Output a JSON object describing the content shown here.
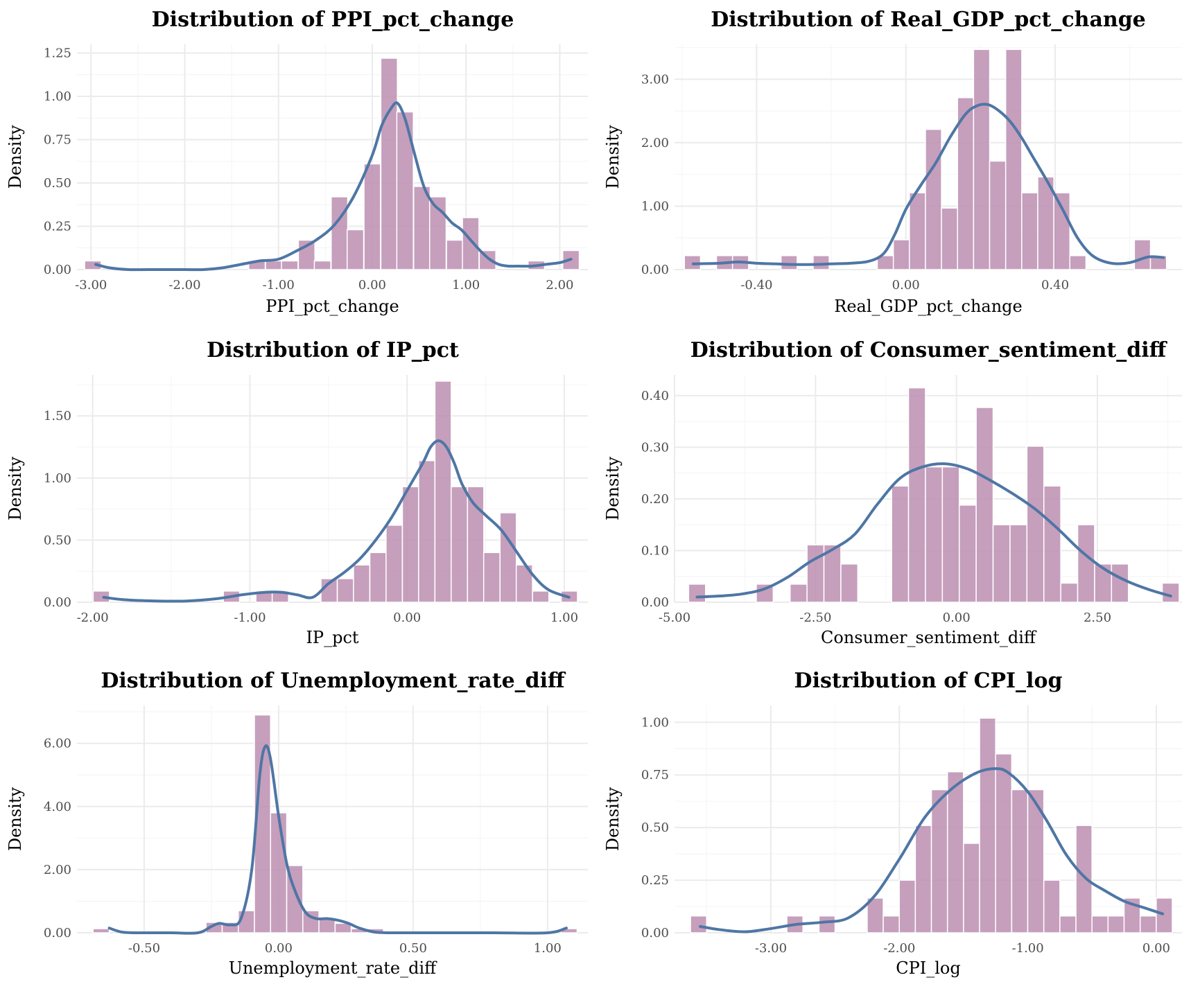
{
  "chart_data": [
    {
      "type": "bar",
      "title": "Distribution of PPI_pct_change",
      "xlabel": "PPI_pct_change",
      "ylabel": "Density",
      "xlim": [
        -3.15,
        2.3
      ],
      "ylim": [
        0,
        1.3
      ],
      "xticks": [
        -3,
        -2,
        -1,
        0,
        1,
        2
      ],
      "xtick_labels": [
        "-3.00",
        "-2.00",
        "-1.00",
        "0.00",
        "1.00",
        "2.00"
      ],
      "yticks": [
        0,
        0.25,
        0.5,
        0.75,
        1.0,
        1.25
      ],
      "ytick_labels": [
        "0.00",
        "0.25",
        "0.50",
        "0.75",
        "1.00",
        "1.25"
      ],
      "bin_width": 0.176,
      "bin_centers": [
        -2.98,
        -1.23,
        -1.05,
        -0.88,
        -0.7,
        -0.53,
        -0.35,
        -0.18,
        0.0,
        0.18,
        0.35,
        0.53,
        0.7,
        0.88,
        1.05,
        1.23,
        1.75,
        2.12
      ],
      "densities": [
        0.05,
        0.05,
        0.05,
        0.05,
        0.17,
        0.05,
        0.42,
        0.23,
        0.61,
        1.22,
        0.91,
        0.48,
        0.42,
        0.17,
        0.3,
        0.11,
        0.05,
        0.11
      ],
      "kde": {
        "x": [
          -2.95,
          -2.8,
          -2.6,
          -2.4,
          -2.2,
          -2.0,
          -1.8,
          -1.6,
          -1.4,
          -1.2,
          -1.0,
          -0.8,
          -0.6,
          -0.4,
          -0.2,
          0.0,
          0.1,
          0.2,
          0.27,
          0.35,
          0.45,
          0.55,
          0.65,
          0.75,
          0.85,
          0.95,
          1.05,
          1.15,
          1.25,
          1.35,
          1.45,
          1.55,
          1.7,
          1.85,
          2.0,
          2.12
        ],
        "y": [
          0.03,
          0.01,
          0.0,
          0.0,
          0.0,
          0.0,
          0.0,
          0.01,
          0.03,
          0.05,
          0.06,
          0.11,
          0.17,
          0.26,
          0.42,
          0.66,
          0.83,
          0.93,
          0.96,
          0.87,
          0.67,
          0.48,
          0.38,
          0.33,
          0.27,
          0.23,
          0.17,
          0.11,
          0.06,
          0.03,
          0.02,
          0.02,
          0.02,
          0.03,
          0.04,
          0.06
        ]
      }
    },
    {
      "type": "bar",
      "title": "Distribution of Real_GDP_pct_change",
      "xlabel": "Real_GDP_pct_change",
      "ylabel": "Density",
      "xlim": [
        -0.62,
        0.74
      ],
      "ylim": [
        0,
        3.55
      ],
      "xticks": [
        -0.4,
        0.0,
        0.4
      ],
      "xtick_labels": [
        "-0.40",
        "0.00",
        "0.40"
      ],
      "yticks": [
        0,
        1,
        2,
        3
      ],
      "ytick_labels": [
        "0.00",
        "1.00",
        "2.00",
        "3.00"
      ],
      "bin_width": 0.0431,
      "bin_centers": [
        -0.572,
        -0.486,
        -0.443,
        -0.313,
        -0.227,
        -0.055,
        -0.012,
        0.031,
        0.074,
        0.117,
        0.16,
        0.203,
        0.246,
        0.289,
        0.332,
        0.375,
        0.418,
        0.461,
        0.634,
        0.677
      ],
      "densities": [
        0.22,
        0.22,
        0.22,
        0.22,
        0.22,
        0.22,
        0.47,
        1.21,
        2.21,
        0.97,
        2.71,
        3.47,
        1.71,
        3.47,
        1.21,
        1.46,
        1.21,
        0.22,
        0.47,
        0.22
      ],
      "kde": {
        "x": [
          -0.57,
          -0.5,
          -0.45,
          -0.4,
          -0.35,
          -0.3,
          -0.25,
          -0.2,
          -0.15,
          -0.1,
          -0.06,
          -0.03,
          0.0,
          0.04,
          0.08,
          0.12,
          0.16,
          0.19,
          0.22,
          0.25,
          0.28,
          0.31,
          0.34,
          0.38,
          0.42,
          0.46,
          0.5,
          0.55,
          0.6,
          0.65,
          0.69
        ],
        "y": [
          0.09,
          0.1,
          0.12,
          0.1,
          0.09,
          0.08,
          0.08,
          0.09,
          0.1,
          0.13,
          0.25,
          0.55,
          0.95,
          1.33,
          1.68,
          2.1,
          2.45,
          2.58,
          2.6,
          2.5,
          2.33,
          2.08,
          1.78,
          1.38,
          0.95,
          0.5,
          0.22,
          0.1,
          0.11,
          0.2,
          0.19
        ]
      }
    },
    {
      "type": "bar",
      "title": "Distribution of IP_pct",
      "xlabel": "IP_pct",
      "ylabel": "Density",
      "xlim": [
        -2.1,
        1.15
      ],
      "ylim": [
        0,
        1.83
      ],
      "xticks": [
        -2,
        -1,
        0,
        1
      ],
      "xtick_labels": [
        "-2.00",
        "-1.00",
        "0.00",
        "1.00"
      ],
      "yticks": [
        0,
        0.5,
        1.0,
        1.5
      ],
      "ytick_labels": [
        "0.00",
        "0.50",
        "1.00",
        "1.50"
      ],
      "bin_width": 0.1035,
      "bin_centers": [
        -1.945,
        -1.117,
        -0.91,
        -0.806,
        -0.496,
        -0.392,
        -0.289,
        -0.185,
        -0.082,
        0.022,
        0.125,
        0.229,
        0.332,
        0.436,
        0.539,
        0.643,
        0.746,
        0.85,
        1.032
      ],
      "densities": [
        0.09,
        0.09,
        0.09,
        0.09,
        0.19,
        0.19,
        0.3,
        0.4,
        0.62,
        0.93,
        1.14,
        1.78,
        0.93,
        0.93,
        0.4,
        0.72,
        0.3,
        0.09,
        0.09
      ],
      "kde": {
        "x": [
          -1.93,
          -1.8,
          -1.6,
          -1.4,
          -1.2,
          -1.05,
          -0.9,
          -0.8,
          -0.7,
          -0.6,
          -0.5,
          -0.4,
          -0.3,
          -0.2,
          -0.1,
          0.0,
          0.1,
          0.15,
          0.2,
          0.25,
          0.3,
          0.35,
          0.42,
          0.5,
          0.6,
          0.7,
          0.8,
          0.9,
          1.03
        ],
        "y": [
          0.04,
          0.02,
          0.01,
          0.01,
          0.03,
          0.06,
          0.08,
          0.08,
          0.06,
          0.04,
          0.15,
          0.24,
          0.35,
          0.5,
          0.68,
          0.9,
          1.12,
          1.25,
          1.3,
          1.25,
          1.12,
          0.95,
          0.8,
          0.7,
          0.58,
          0.4,
          0.22,
          0.1,
          0.04
        ]
      }
    },
    {
      "type": "bar",
      "title": "Distribution of Consumer_sentiment_diff",
      "xlabel": "Consumer_sentiment_diff",
      "ylabel": "Density",
      "xlim": [
        -5.0,
        4.0
      ],
      "ylim": [
        0,
        0.44
      ],
      "xticks": [
        -5.0,
        -2.5,
        0.0,
        2.5
      ],
      "xtick_labels": [
        "-5.00",
        "-2.50",
        "0.00",
        "2.50"
      ],
      "yticks": [
        0,
        0.1,
        0.2,
        0.3,
        0.4
      ],
      "ytick_labels": [
        "0.00",
        "0.10",
        "0.20",
        "0.30",
        "0.40"
      ],
      "bin_width": 0.3,
      "bin_centers": [
        -4.6,
        -3.4,
        -2.8,
        -2.5,
        -2.2,
        -1.9,
        -1.6,
        -1.0,
        -0.7,
        -0.4,
        -0.1,
        0.2,
        0.5,
        0.8,
        1.1,
        1.4,
        1.7,
        2.0,
        2.3,
        2.6,
        2.9,
        3.8
      ],
      "densities": [
        0.035,
        0.035,
        0.035,
        0.111,
        0.111,
        0.074,
        0.0,
        0.225,
        0.415,
        0.262,
        0.262,
        0.188,
        0.377,
        0.15,
        0.15,
        0.302,
        0.225,
        0.037,
        0.15,
        0.074,
        0.074,
        0.037
      ],
      "kde": {
        "x": [
          -4.6,
          -4.2,
          -3.8,
          -3.4,
          -3.0,
          -2.6,
          -2.2,
          -1.8,
          -1.4,
          -1.0,
          -0.6,
          -0.2,
          0.2,
          0.6,
          1.0,
          1.4,
          1.8,
          2.2,
          2.6,
          3.0,
          3.4,
          3.8
        ],
        "y": [
          0.01,
          0.012,
          0.016,
          0.026,
          0.048,
          0.078,
          0.102,
          0.132,
          0.19,
          0.24,
          0.262,
          0.268,
          0.258,
          0.236,
          0.21,
          0.18,
          0.142,
          0.1,
          0.066,
          0.042,
          0.025,
          0.012
        ]
      }
    },
    {
      "type": "bar",
      "title": "Distribution of Unemployment_rate_diff",
      "xlabel": "Unemployment_rate_diff",
      "ylabel": "Density",
      "xlim": [
        -0.75,
        1.15
      ],
      "ylim": [
        0,
        7.2
      ],
      "xticks": [
        -0.5,
        0.0,
        0.5,
        1.0
      ],
      "xtick_labels": [
        "-0.50",
        "0.00",
        "0.50",
        "1.00"
      ],
      "yticks": [
        0,
        2,
        4,
        6
      ],
      "ytick_labels": [
        "0.00",
        "2.00",
        "4.00",
        "6.00"
      ],
      "bin_width": 0.06,
      "bin_centers": [
        -0.66,
        -0.24,
        -0.18,
        -0.12,
        -0.06,
        0.0,
        0.06,
        0.12,
        0.18,
        0.24,
        0.3,
        0.36,
        1.08
      ],
      "densities": [
        0.13,
        0.33,
        0.33,
        0.7,
        6.9,
        3.8,
        2.13,
        0.7,
        0.47,
        0.3,
        0.13,
        0.13,
        0.13
      ],
      "kde": {
        "x": [
          -0.63,
          -0.58,
          -0.5,
          -0.4,
          -0.3,
          -0.25,
          -0.22,
          -0.18,
          -0.14,
          -0.1,
          -0.07,
          -0.05,
          -0.03,
          0.0,
          0.03,
          0.06,
          0.1,
          0.14,
          0.18,
          0.22,
          0.26,
          0.3,
          0.36,
          0.45,
          0.6,
          0.8,
          1.0,
          1.07
        ],
        "y": [
          0.15,
          0.02,
          0.0,
          0.0,
          0.0,
          0.2,
          0.3,
          0.25,
          0.45,
          2.0,
          5.0,
          5.9,
          5.5,
          3.7,
          2.2,
          1.35,
          0.65,
          0.45,
          0.45,
          0.4,
          0.3,
          0.15,
          0.02,
          0.0,
          0.0,
          0.0,
          0.0,
          0.15
        ]
      }
    },
    {
      "type": "bar",
      "title": "Distribution of CPI_log",
      "xlabel": "CPI_log",
      "ylabel": "Density",
      "xlim": [
        -3.75,
        0.2
      ],
      "ylim": [
        0,
        1.08
      ],
      "xticks": [
        -3,
        -2,
        -1,
        0
      ],
      "xtick_labels": [
        "-3.00",
        "-2.00",
        "-1.00",
        "0.00"
      ],
      "yticks": [
        0,
        0.25,
        0.5,
        0.75,
        1.0
      ],
      "ytick_labels": [
        "0.00",
        "0.25",
        "0.50",
        "0.75",
        "1.00"
      ],
      "bin_width": 0.125,
      "bin_centers": [
        -3.563,
        -2.813,
        -2.563,
        -2.188,
        -2.063,
        -1.938,
        -1.813,
        -1.688,
        -1.563,
        -1.438,
        -1.313,
        -1.188,
        -1.063,
        -0.938,
        -0.813,
        -0.688,
        -0.563,
        -0.438,
        -0.313,
        -0.188,
        -0.063,
        0.062
      ],
      "densities": [
        0.08,
        0.08,
        0.08,
        0.165,
        0.08,
        0.25,
        0.51,
        0.68,
        0.765,
        0.425,
        1.02,
        0.85,
        0.68,
        0.68,
        0.25,
        0.08,
        0.51,
        0.08,
        0.08,
        0.165,
        0.08,
        0.165
      ],
      "kde": {
        "x": [
          -3.55,
          -3.4,
          -3.2,
          -3.0,
          -2.8,
          -2.6,
          -2.4,
          -2.2,
          -2.0,
          -1.8,
          -1.6,
          -1.4,
          -1.25,
          -1.15,
          -1.0,
          -0.85,
          -0.7,
          -0.55,
          -0.4,
          -0.25,
          -0.1,
          0.05
        ],
        "y": [
          0.03,
          0.015,
          0.005,
          0.02,
          0.04,
          0.05,
          0.07,
          0.17,
          0.35,
          0.55,
          0.68,
          0.76,
          0.78,
          0.76,
          0.67,
          0.53,
          0.37,
          0.26,
          0.2,
          0.15,
          0.12,
          0.09
        ]
      }
    }
  ],
  "colors": {
    "bar_fill": "#bc8eb2",
    "bar_edge": "#ffffff",
    "density_line": "#4e76a4",
    "grid_major": "#ebebeb",
    "grid_minor": "#f4f4f4",
    "tick_text": "#4d4d4d"
  }
}
